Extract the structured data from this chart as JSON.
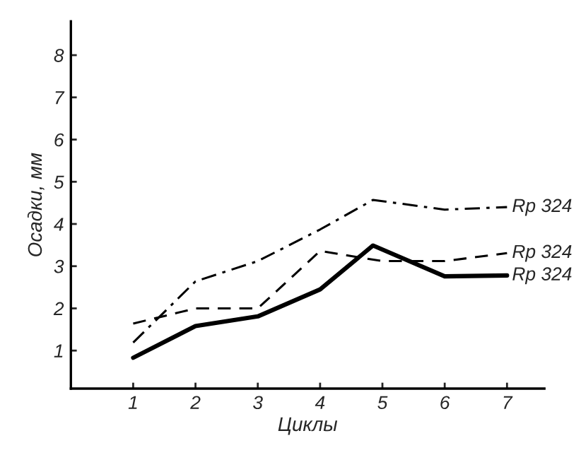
{
  "chart_data": {
    "type": "line",
    "xlabel": "Циклы",
    "ylabel": "Осадки, мм",
    "xlim": [
      0,
      7.6
    ],
    "ylim": [
      0.1,
      8.8
    ],
    "xticks": [
      1,
      2,
      3,
      4,
      5,
      6,
      7
    ],
    "yticks": [
      1,
      2,
      3,
      4,
      5,
      6,
      7,
      8
    ],
    "grid": false,
    "legend": false,
    "marker": "none",
    "series": [
      {
        "name": "Rp 324",
        "color": "#000000",
        "line_style": "dashdot",
        "x": [
          1,
          2,
          3,
          4,
          4.85,
          6,
          7
        ],
        "values": [
          1.19,
          2.64,
          3.12,
          3.87,
          4.57,
          4.34,
          4.4
        ]
      },
      {
        "name": "Rp 324",
        "color": "#000000",
        "line_style": "dashed",
        "x": [
          1,
          2,
          3,
          4,
          5,
          6,
          7
        ],
        "values": [
          1.64,
          2.0,
          2.0,
          3.36,
          3.12,
          3.12,
          3.31
        ]
      },
      {
        "name": "Rp 324",
        "color": "#000000",
        "line_style": "solid",
        "x": [
          1,
          2,
          3,
          4,
          4.85,
          6,
          7
        ],
        "values": [
          0.83,
          1.58,
          1.81,
          2.45,
          3.49,
          2.76,
          2.78
        ]
      }
    ]
  }
}
